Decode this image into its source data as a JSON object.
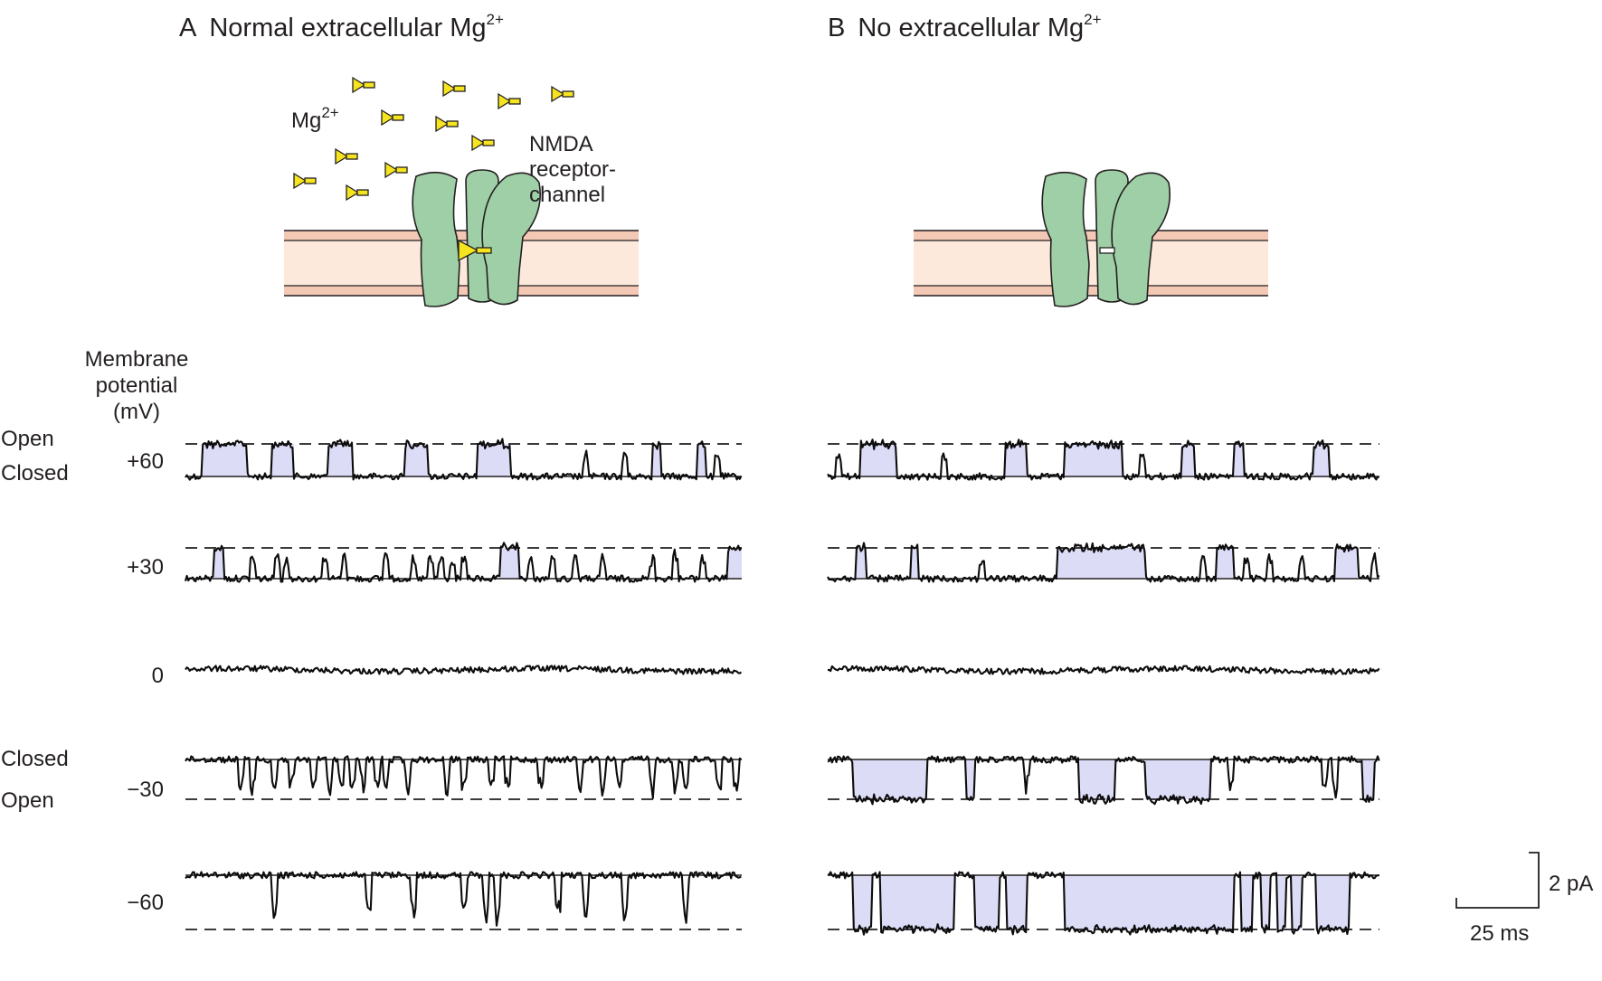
{
  "panels": [
    {
      "letter": "A",
      "title": "Normal extracellular Mg",
      "title_sup": "2+",
      "ion_label": "Mg",
      "ion_sup": "2+",
      "channel_label": [
        "NMDA",
        "receptor-",
        "channel"
      ],
      "mg_in_pore": true,
      "traces": [
        {
          "potential": "+60",
          "direction": "up",
          "openings": [
            [
              0.03,
              0.11
            ],
            [
              0.155,
              0.195
            ],
            [
              0.255,
              0.3
            ],
            [
              0.395,
              0.435
            ],
            [
              0.525,
              0.585
            ],
            [
              0.84,
              0.855
            ],
            [
              0.92,
              0.935
            ]
          ],
          "brief": [
            0.72,
            0.79,
            0.955
          ]
        },
        {
          "potential": "+30",
          "direction": "up",
          "openings": [
            [
              0.05,
              0.07
            ],
            [
              0.565,
              0.6
            ],
            [
              0.975,
              1.0
            ]
          ],
          "brief": [
            0.12,
            0.165,
            0.18,
            0.25,
            0.285,
            0.36,
            0.41,
            0.44,
            0.46,
            0.48,
            0.5,
            0.62,
            0.66,
            0.7,
            0.75,
            0.84,
            0.88,
            0.93
          ]
        },
        {
          "potential": "0",
          "direction": "none",
          "openings": [],
          "brief": []
        },
        {
          "potential": "−30",
          "direction": "down",
          "openings": [],
          "brief": [
            0.1,
            0.12,
            0.16,
            0.19,
            0.23,
            0.26,
            0.28,
            0.3,
            0.32,
            0.345,
            0.36,
            0.4,
            0.47,
            0.5,
            0.55,
            0.58,
            0.64,
            0.71,
            0.75,
            0.78,
            0.84,
            0.88,
            0.9,
            0.96,
            0.99
          ]
        },
        {
          "potential": "−60",
          "direction": "down",
          "openings": [],
          "brief": [
            0.16,
            0.33,
            0.41,
            0.5,
            0.54,
            0.56,
            0.67,
            0.72,
            0.79,
            0.9
          ]
        }
      ]
    },
    {
      "letter": "B",
      "title": "No extracellular Mg",
      "title_sup": "2+",
      "mg_in_pore": false,
      "traces": [
        {
          "potential": "+60",
          "direction": "up",
          "openings": [
            [
              0.06,
              0.125
            ],
            [
              0.32,
              0.36
            ],
            [
              0.43,
              0.535
            ],
            [
              0.64,
              0.665
            ],
            [
              0.735,
              0.755
            ],
            [
              0.88,
              0.91
            ]
          ],
          "brief": [
            0.02,
            0.21,
            0.57
          ]
        },
        {
          "potential": "+30",
          "direction": "up",
          "openings": [
            [
              0.05,
              0.07
            ],
            [
              0.15,
              0.165
            ],
            [
              0.415,
              0.575
            ],
            [
              0.705,
              0.735
            ],
            [
              0.92,
              0.96
            ]
          ],
          "brief": [
            0.28,
            0.68,
            0.76,
            0.8,
            0.86,
            0.99
          ]
        },
        {
          "potential": "0",
          "direction": "none",
          "openings": [],
          "brief": []
        },
        {
          "potential": "−30",
          "direction": "down",
          "openings": [
            [
              0.045,
              0.18
            ],
            [
              0.25,
              0.265
            ],
            [
              0.455,
              0.52
            ],
            [
              0.575,
              0.695
            ],
            [
              0.97,
              0.99
            ]
          ],
          "brief": [
            0.36,
            0.73,
            0.9,
            0.92
          ]
        },
        {
          "potential": "−60",
          "direction": "down",
          "openings": [
            [
              0.045,
              0.08
            ],
            [
              0.095,
              0.23
            ],
            [
              0.265,
              0.31
            ],
            [
              0.325,
              0.36
            ],
            [
              0.43,
              0.735
            ],
            [
              0.75,
              0.77
            ],
            [
              0.785,
              0.8
            ],
            [
              0.815,
              0.83
            ],
            [
              0.84,
              0.86
            ],
            [
              0.885,
              0.945
            ]
          ],
          "brief": []
        }
      ]
    }
  ],
  "row_labels": {
    "heading": [
      "Membrane",
      "potential",
      "(mV)"
    ],
    "open": "Open",
    "closed": "Closed"
  },
  "scale_bar": {
    "current": "2 pA",
    "time": "25 ms"
  },
  "colors": {
    "channel": "#9fcfa6",
    "membrane": "#fde8dc",
    "membrane_line": "#e8b8a4",
    "mg_ion": "#f6e51e",
    "open_fill": "#dcdcf7",
    "trace": "#0d0d0d"
  }
}
